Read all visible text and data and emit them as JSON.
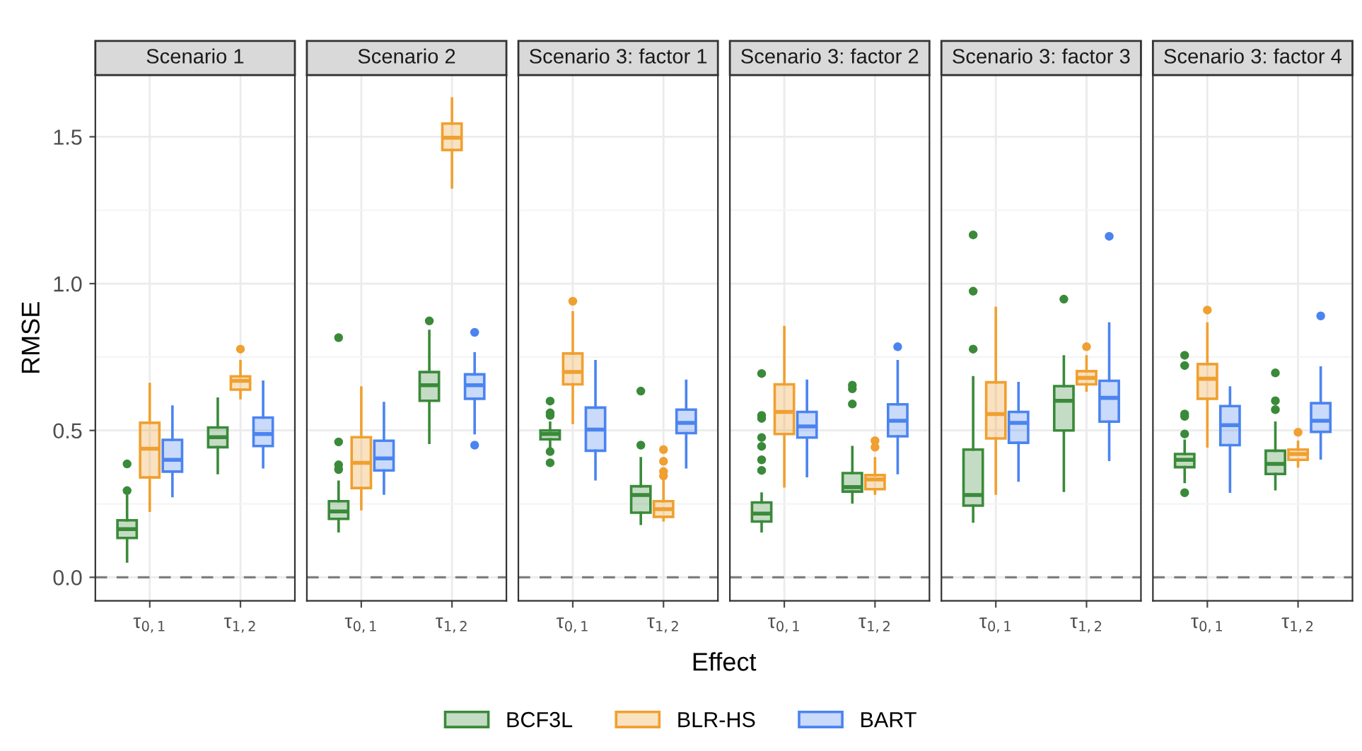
{
  "chart_data": [
    {
      "type": "box",
      "title": "Scenario 1",
      "ylabel": "RMSE",
      "legend": "bottom",
      "grid": true,
      "ylim": [
        -0.08,
        1.71
      ],
      "yticks": [
        {
          "value": 0,
          "label": "0.0"
        },
        {
          "value": 0.25,
          "label": null
        },
        0.5,
        {
          "value": 0.75,
          "label": null
        },
        {
          "value": 1,
          "label": "1.0"
        },
        {
          "value": 1.25,
          "label": null
        },
        1.5
      ],
      "categories": [
        "τ$_{0,1}$",
        "τ$_{1,2}$"
      ],
      "ref_lines": [
        {
          "axis": "y",
          "value": 0,
          "line_style": "dashed",
          "color": "#7f7f7f"
        }
      ],
      "series": [
        {
          "name": "BCF3L",
          "color": "#3a8a3a",
          "boxes": [
            {
              "low": 0.054,
              "q1": 0.134,
              "median": 0.164,
              "q3": 0.194,
              "high": 0.277,
              "outliers": [
                0.295,
                0.386
              ]
            },
            {
              "low": 0.355,
              "q1": 0.443,
              "median": 0.477,
              "q3": 0.51,
              "high": 0.608
            }
          ]
        },
        {
          "name": "BLR-HS",
          "color": "#f0a030",
          "boxes": [
            {
              "low": 0.227,
              "q1": 0.34,
              "median": 0.438,
              "q3": 0.526,
              "high": 0.658
            },
            {
              "low": 0.61,
              "q1": 0.639,
              "median": 0.669,
              "q3": 0.684,
              "high": 0.736,
              "outliers": [
                0.777
              ]
            }
          ]
        },
        {
          "name": "BART",
          "color": "#4b84f0",
          "boxes": [
            {
              "low": 0.277,
              "q1": 0.36,
              "median": 0.4,
              "q3": 0.468,
              "high": 0.581
            },
            {
              "low": 0.375,
              "q1": 0.447,
              "median": 0.488,
              "q3": 0.544,
              "high": 0.666
            }
          ]
        }
      ]
    },
    {
      "type": "box",
      "title": "Scenario 2",
      "tick_labels": "x",
      "grid": true,
      "ylim": [
        -0.08,
        1.71
      ],
      "yticks": [
        0,
        {
          "value": 0.25,
          "label": null
        },
        0.5,
        {
          "value": 0.75,
          "label": null
        },
        1,
        {
          "value": 1.25,
          "label": null
        },
        1.5
      ],
      "categories": [
        "τ$_{0,1}$",
        "τ$_{1,2}$"
      ],
      "ref_lines": [
        {
          "axis": "y",
          "value": 0,
          "line_style": "dashed",
          "color": "#7f7f7f"
        }
      ],
      "series": [
        {
          "color": "#3a8a3a",
          "boxes": [
            {
              "low": 0.157,
              "q1": 0.199,
              "median": 0.224,
              "q3": 0.259,
              "high": 0.325,
              "outliers": [
                0.367,
                0.383,
                0.461,
                0.816
              ]
            },
            {
              "low": 0.458,
              "q1": 0.601,
              "median": 0.654,
              "q3": 0.699,
              "high": 0.839,
              "outliers": [
                0.873
              ]
            }
          ]
        },
        {
          "color": "#f0a030",
          "boxes": [
            {
              "low": 0.232,
              "q1": 0.304,
              "median": 0.39,
              "q3": 0.477,
              "high": 0.646
            },
            {
              "low": 1.328,
              "q1": 1.455,
              "median": 1.497,
              "q3": 1.545,
              "high": 1.63
            }
          ]
        },
        {
          "color": "#4b84f0",
          "boxes": [
            {
              "low": 0.285,
              "q1": 0.364,
              "median": 0.405,
              "q3": 0.465,
              "high": 0.593
            },
            {
              "low": 0.491,
              "q1": 0.608,
              "median": 0.654,
              "q3": 0.691,
              "high": 0.762,
              "outliers": [
                0.45,
                0.834
              ]
            }
          ]
        }
      ]
    },
    {
      "type": "box",
      "title": "Scenario 3: factor 1",
      "xlabel": "Effect",
      "tick_labels": "x",
      "grid": true,
      "ylim": [
        -0.08,
        1.71
      ],
      "yticks": [
        0,
        {
          "value": 0.25,
          "label": null
        },
        0.5,
        {
          "value": 0.75,
          "label": null
        },
        1,
        {
          "value": 1.25,
          "label": null
        },
        1.5
      ],
      "categories": [
        "τ$_{0,1}$",
        "τ$_{1,2}$"
      ],
      "ref_lines": [
        {
          "axis": "y",
          "value": 0,
          "line_style": "dashed",
          "color": "#7f7f7f"
        }
      ],
      "series": [
        {
          "color": "#3a8a3a",
          "boxes": [
            {
              "low": 0.435,
              "q1": 0.47,
              "median": 0.488,
              "q3": 0.5,
              "high": 0.526,
              "outliers": [
                0.39,
                0.428,
                0.551,
                0.56,
                0.6
              ]
            },
            {
              "low": 0.182,
              "q1": 0.22,
              "median": 0.28,
              "q3": 0.31,
              "high": 0.405,
              "outliers": [
                0.45,
                0.634
              ]
            }
          ]
        },
        {
          "color": "#f0a030",
          "boxes": [
            {
              "low": 0.526,
              "q1": 0.657,
              "median": 0.699,
              "q3": 0.762,
              "high": 0.902,
              "outliers": [
                0.94
              ]
            },
            {
              "low": 0.194,
              "q1": 0.206,
              "median": 0.232,
              "q3": 0.259,
              "high": 0.33,
              "outliers": [
                0.345,
                0.36,
                0.395,
                0.435
              ]
            }
          ]
        },
        {
          "color": "#4b84f0",
          "boxes": [
            {
              "low": 0.334,
              "q1": 0.431,
              "median": 0.503,
              "q3": 0.578,
              "high": 0.736
            },
            {
              "low": 0.375,
              "q1": 0.491,
              "median": 0.526,
              "q3": 0.571,
              "high": 0.669
            }
          ]
        }
      ]
    },
    {
      "type": "box",
      "title": "Scenario 3: factor 2",
      "tick_labels": "x",
      "grid": true,
      "ylim": [
        -0.08,
        1.71
      ],
      "yticks": [
        0,
        {
          "value": 0.25,
          "label": null
        },
        0.5,
        {
          "value": 0.75,
          "label": null
        },
        1,
        {
          "value": 1.25,
          "label": null
        },
        1.5
      ],
      "categories": [
        "τ$_{0,1}$",
        "τ$_{1,2}$"
      ],
      "ref_lines": [
        {
          "axis": "y",
          "value": 0,
          "line_style": "dashed",
          "color": "#7f7f7f"
        }
      ],
      "series": [
        {
          "color": "#3a8a3a",
          "boxes": [
            {
              "low": 0.157,
              "q1": 0.19,
              "median": 0.217,
              "q3": 0.255,
              "high": 0.285,
              "outliers": [
                0.364,
                0.4,
                0.446,
                0.476,
                0.541,
                0.551,
                0.694
              ]
            },
            {
              "low": 0.255,
              "q1": 0.292,
              "median": 0.307,
              "q3": 0.355,
              "high": 0.443,
              "outliers": [
                0.59,
                0.642,
                0.654
              ]
            }
          ]
        },
        {
          "color": "#f0a030",
          "boxes": [
            {
              "low": 0.31,
              "q1": 0.488,
              "median": 0.563,
              "q3": 0.657,
              "high": 0.852
            },
            {
              "low": 0.285,
              "q1": 0.3,
              "median": 0.333,
              "q3": 0.348,
              "high": 0.405,
              "outliers": [
                0.443,
                0.465
              ]
            }
          ]
        },
        {
          "color": "#4b84f0",
          "boxes": [
            {
              "low": 0.345,
              "q1": 0.476,
              "median": 0.514,
              "q3": 0.563,
              "high": 0.669
            },
            {
              "low": 0.355,
              "q1": 0.48,
              "median": 0.533,
              "q3": 0.589,
              "high": 0.736,
              "outliers": [
                0.785
              ]
            }
          ]
        }
      ]
    },
    {
      "type": "box",
      "title": "Scenario 3: factor 3",
      "tick_labels": "x",
      "grid": true,
      "ylim": [
        -0.08,
        1.71
      ],
      "yticks": [
        0,
        {
          "value": 0.25,
          "label": null
        },
        0.5,
        {
          "value": 0.75,
          "label": null
        },
        1,
        {
          "value": 1.25,
          "label": null
        },
        1.5
      ],
      "categories": [
        "τ$_{0,1}$",
        "τ$_{1,2}$"
      ],
      "ref_lines": [
        {
          "axis": "y",
          "value": 0,
          "line_style": "dashed",
          "color": "#7f7f7f"
        }
      ],
      "series": [
        {
          "color": "#3a8a3a",
          "boxes": [
            {
              "low": 0.19,
              "q1": 0.244,
              "median": 0.28,
              "q3": 0.435,
              "high": 0.681,
              "outliers": [
                0.777,
                0.974,
                1.166
              ]
            },
            {
              "low": 0.295,
              "q1": 0.5,
              "median": 0.601,
              "q3": 0.651,
              "high": 0.752,
              "outliers": [
                0.947
              ]
            }
          ]
        },
        {
          "color": "#f0a030",
          "boxes": [
            {
              "low": 0.285,
              "q1": 0.473,
              "median": 0.556,
              "q3": 0.664,
              "high": 0.917
            },
            {
              "low": 0.636,
              "q1": 0.657,
              "median": 0.679,
              "q3": 0.702,
              "high": 0.752,
              "outliers": [
                0.785
              ]
            }
          ]
        },
        {
          "color": "#4b84f0",
          "boxes": [
            {
              "low": 0.33,
              "q1": 0.458,
              "median": 0.526,
              "q3": 0.563,
              "high": 0.661
            },
            {
              "low": 0.4,
              "q1": 0.53,
              "median": 0.611,
              "q3": 0.669,
              "high": 0.864,
              "outliers": [
                1.161
              ]
            }
          ]
        }
      ]
    },
    {
      "type": "box",
      "title": "Scenario 3: factor 4",
      "tick_labels": "x",
      "grid": true,
      "ylim": [
        -0.08,
        1.71
      ],
      "yticks": [
        0,
        {
          "value": 0.25,
          "label": null
        },
        0.5,
        {
          "value": 0.75,
          "label": null
        },
        1,
        {
          "value": 1.25,
          "label": null
        },
        1.5
      ],
      "categories": [
        "τ$_{0,1}$",
        "τ$_{1,2}$"
      ],
      "ref_lines": [
        {
          "axis": "y",
          "value": 0,
          "line_style": "dashed",
          "color": "#7f7f7f"
        }
      ],
      "series": [
        {
          "color": "#3a8a3a",
          "boxes": [
            {
              "low": 0.325,
              "q1": 0.375,
              "median": 0.4,
              "q3": 0.42,
              "high": 0.465,
              "outliers": [
                0.288,
                0.488,
                0.548,
                0.556,
                0.721,
                0.756
              ]
            },
            {
              "low": 0.3,
              "q1": 0.352,
              "median": 0.386,
              "q3": 0.431,
              "high": 0.526,
              "outliers": [
                0.571,
                0.601,
                0.696
              ]
            }
          ]
        },
        {
          "color": "#f0a030",
          "boxes": [
            {
              "low": 0.446,
              "q1": 0.608,
              "median": 0.676,
              "q3": 0.726,
              "high": 0.864,
              "outliers": [
                0.91
              ]
            },
            {
              "low": 0.378,
              "q1": 0.4,
              "median": 0.42,
              "q3": 0.435,
              "high": 0.461,
              "outliers": [
                0.494
              ]
            }
          ]
        },
        {
          "color": "#4b84f0",
          "boxes": [
            {
              "low": 0.292,
              "q1": 0.45,
              "median": 0.518,
              "q3": 0.583,
              "high": 0.646
            },
            {
              "low": 0.405,
              "q1": 0.495,
              "median": 0.533,
              "q3": 0.593,
              "high": 0.714,
              "outliers": [
                0.89
              ]
            }
          ]
        }
      ]
    }
  ]
}
